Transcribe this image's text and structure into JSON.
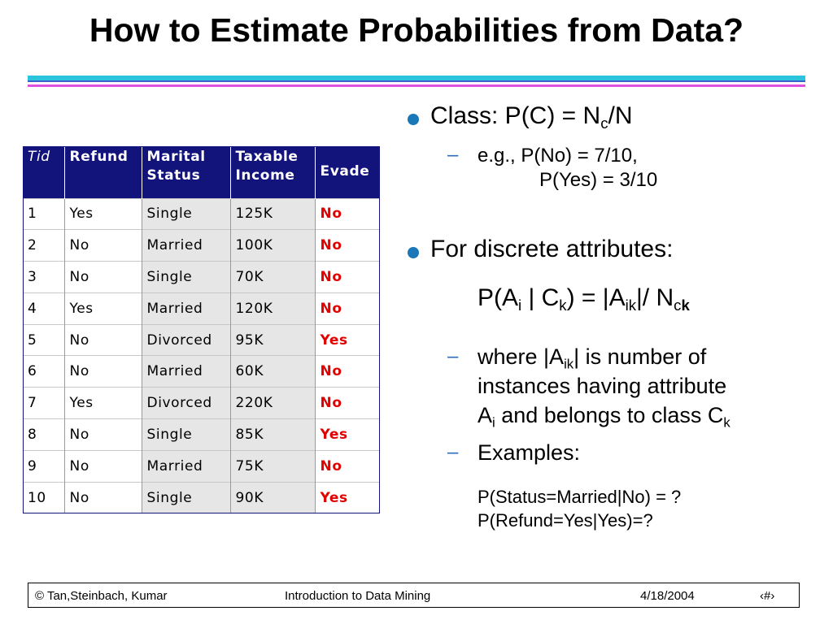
{
  "title": "How to Estimate Probabilities from Data?",
  "table": {
    "headers": [
      "Tid",
      "Refund",
      "Marital Status",
      "Taxable Income",
      "Evade"
    ],
    "header_lines": {
      "marital": [
        "Marital",
        "Status"
      ],
      "income": [
        "Taxable",
        "Income"
      ]
    },
    "rows": [
      [
        "1",
        "Yes",
        "Single",
        "125K",
        "No"
      ],
      [
        "2",
        "No",
        "Married",
        "100K",
        "No"
      ],
      [
        "3",
        "No",
        "Single",
        "70K",
        "No"
      ],
      [
        "4",
        "Yes",
        "Married",
        "120K",
        "No"
      ],
      [
        "5",
        "No",
        "Divorced",
        "95K",
        "Yes"
      ],
      [
        "6",
        "No",
        "Married",
        "60K",
        "No"
      ],
      [
        "7",
        "Yes",
        "Divorced",
        "220K",
        "No"
      ],
      [
        "8",
        "No",
        "Single",
        "85K",
        "Yes"
      ],
      [
        "9",
        "No",
        "Married",
        "75K",
        "No"
      ],
      [
        "10",
        "No",
        "Single",
        "90K",
        "Yes"
      ]
    ]
  },
  "bullets": {
    "class_prefix": "Class:  P(C) = N",
    "class_sub": "c",
    "class_suffix": "/N",
    "example_line1": "e.g.,  P(No) = 7/10,",
    "example_line2": "P(Yes) = 3/10",
    "discrete": "For discrete attributes:",
    "formula": {
      "p1": "P(A",
      "s1": "i",
      "p2": " | C",
      "s2": "k",
      "p3": ") = |A",
      "s3": "ik",
      "p4": "|/ N",
      "s4": "c",
      "s5": "k"
    },
    "where": {
      "l1a": "where |A",
      "l1s": "ik",
      "l1b": "| is number of",
      "l2": "instances having attribute",
      "l3a": "A",
      "l3s": "i",
      "l3b": " and belongs to class C",
      "l3s2": "k"
    },
    "examples_label": "Examples:",
    "examples": [
      "P(Status=Married|No) = ?",
      "P(Refund=Yes|Yes)=?"
    ],
    "dash": "–"
  },
  "footer": {
    "left": "© Tan,Steinbach, Kumar",
    "center": "Introduction to Data Mining",
    "date": "4/18/2004",
    "page": "‹#›"
  },
  "colors": {
    "header_bg": "#13137c",
    "class_label": "#e00000",
    "bullet": "#1a78b8"
  }
}
